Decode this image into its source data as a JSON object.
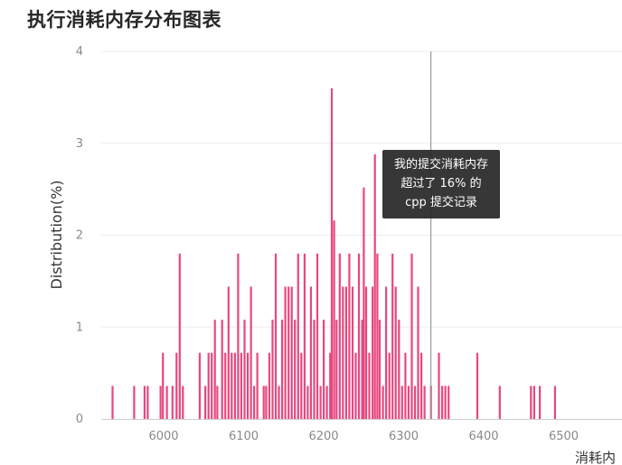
{
  "title": "执行消耗内存分布图表",
  "tooltip": {
    "lines": [
      "我的提交消耗内存",
      "超过了 16% 的",
      "cpp 提交记录"
    ]
  },
  "colors": {
    "bar": "#e8477f",
    "grid": "#eeeeee",
    "tick_text": "#8a8a8a",
    "axis_label": "#333333",
    "marker_line": "#999999"
  },
  "chart_data": {
    "type": "bar",
    "title": "执行消耗内存分布图表",
    "xlabel": "消耗内",
    "ylabel": "Distribution(%)",
    "xlim": [
      5930,
      6550
    ],
    "ylim": [
      0,
      4
    ],
    "x_ticks": [
      6000,
      6100,
      6200,
      6300,
      6400,
      6500
    ],
    "y_ticks": [
      0,
      1,
      2,
      3,
      4
    ],
    "grid": true,
    "marker_x": 6334,
    "points": [
      [
        5936,
        0.36
      ],
      [
        5963,
        0.36
      ],
      [
        5976,
        0.36
      ],
      [
        5980,
        0.36
      ],
      [
        5996,
        0.36
      ],
      [
        5999,
        0.72
      ],
      [
        6004,
        0.36
      ],
      [
        6011,
        0.36
      ],
      [
        6016,
        0.72
      ],
      [
        6020,
        1.8
      ],
      [
        6024,
        0.36
      ],
      [
        6045,
        0.72
      ],
      [
        6052,
        0.36
      ],
      [
        6056,
        0.72
      ],
      [
        6060,
        0.72
      ],
      [
        6064,
        1.08
      ],
      [
        6067,
        0.36
      ],
      [
        6073,
        1.08
      ],
      [
        6077,
        0.72
      ],
      [
        6081,
        1.44
      ],
      [
        6085,
        0.72
      ],
      [
        6089,
        0.72
      ],
      [
        6093,
        1.8
      ],
      [
        6097,
        0.72
      ],
      [
        6101,
        1.08
      ],
      [
        6105,
        0.72
      ],
      [
        6109,
        1.44
      ],
      [
        6113,
        0.36
      ],
      [
        6117,
        0.72
      ],
      [
        6125,
        0.36
      ],
      [
        6128,
        0.36
      ],
      [
        6132,
        0.72
      ],
      [
        6136,
        1.08
      ],
      [
        6140,
        1.8
      ],
      [
        6144,
        0.36
      ],
      [
        6148,
        1.08
      ],
      [
        6152,
        1.44
      ],
      [
        6156,
        1.44
      ],
      [
        6160,
        1.44
      ],
      [
        6164,
        1.08
      ],
      [
        6168,
        1.8
      ],
      [
        6172,
        0.72
      ],
      [
        6176,
        1.8
      ],
      [
        6180,
        0.36
      ],
      [
        6184,
        1.44
      ],
      [
        6188,
        1.08
      ],
      [
        6192,
        1.8
      ],
      [
        6196,
        0.36
      ],
      [
        6200,
        1.08
      ],
      [
        6204,
        0.36
      ],
      [
        6208,
        0.72
      ],
      [
        6210,
        3.6
      ],
      [
        6213,
        2.16
      ],
      [
        6216,
        1.08
      ],
      [
        6220,
        1.8
      ],
      [
        6224,
        1.44
      ],
      [
        6228,
        1.44
      ],
      [
        6232,
        1.8
      ],
      [
        6236,
        1.44
      ],
      [
        6240,
        0.72
      ],
      [
        6244,
        1.8
      ],
      [
        6248,
        1.08
      ],
      [
        6250,
        2.52
      ],
      [
        6253,
        1.44
      ],
      [
        6257,
        0.72
      ],
      [
        6261,
        1.44
      ],
      [
        6264,
        2.88
      ],
      [
        6267,
        1.8
      ],
      [
        6270,
        1.08
      ],
      [
        6274,
        0.36
      ],
      [
        6278,
        1.44
      ],
      [
        6282,
        0.72
      ],
      [
        6286,
        1.8
      ],
      [
        6290,
        1.44
      ],
      [
        6294,
        1.08
      ],
      [
        6298,
        0.36
      ],
      [
        6302,
        0.72
      ],
      [
        6306,
        0.36
      ],
      [
        6310,
        1.8
      ],
      [
        6314,
        0.36
      ],
      [
        6318,
        1.44
      ],
      [
        6322,
        0.72
      ],
      [
        6326,
        0.36
      ],
      [
        6334,
        0.36
      ],
      [
        6344,
        0.72
      ],
      [
        6348,
        0.36
      ],
      [
        6352,
        0.36
      ],
      [
        6356,
        0.36
      ],
      [
        6392,
        0.72
      ],
      [
        6420,
        0.36
      ],
      [
        6459,
        0.36
      ],
      [
        6463,
        0.36
      ],
      [
        6470,
        0.36
      ],
      [
        6489,
        0.36
      ]
    ]
  }
}
